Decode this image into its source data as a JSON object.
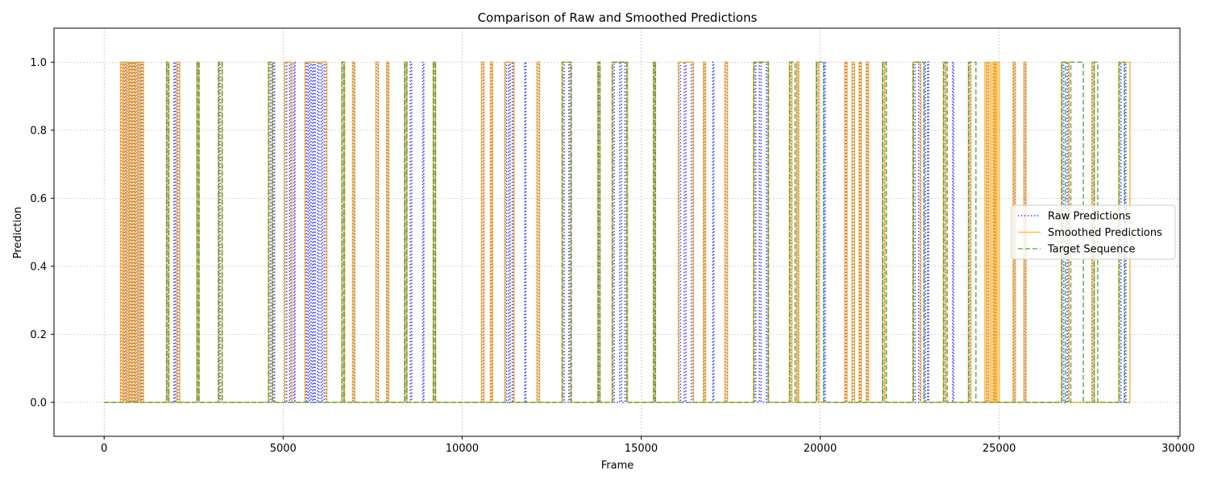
{
  "chart_data": {
    "type": "line",
    "title": "Comparison of Raw and Smoothed Predictions",
    "xlabel": "Frame",
    "ylabel": "Prediction",
    "xlim": [
      -1400,
      30050
    ],
    "ylim": [
      -0.1,
      1.1
    ],
    "xticks": [
      0,
      5000,
      10000,
      15000,
      20000,
      25000,
      30000
    ],
    "xtick_labels": [
      "0",
      "5000",
      "10000",
      "15000",
      "20000",
      "25000",
      "30000"
    ],
    "yticks": [
      0.0,
      0.2,
      0.4,
      0.6,
      0.8,
      1.0
    ],
    "ytick_labels": [
      "0.0",
      "0.2",
      "0.4",
      "0.6",
      "0.8",
      "1.0"
    ],
    "grid": true,
    "legend_position": "center-right",
    "x_end": 28650,
    "series": [
      {
        "name": "Raw Predictions",
        "color": "#0000ff",
        "style": "dotted",
        "on_intervals": [
          [
            470,
            520
          ],
          [
            560,
            600
          ],
          [
            640,
            680
          ],
          [
            720,
            760
          ],
          [
            800,
            840
          ],
          [
            880,
            920
          ],
          [
            960,
            1000
          ],
          [
            1040,
            1080
          ],
          [
            1750,
            1800
          ],
          [
            1950,
            1990
          ],
          [
            2050,
            2100
          ],
          [
            2600,
            2640
          ],
          [
            3200,
            3240
          ],
          [
            4600,
            4650
          ],
          [
            4720,
            4760
          ],
          [
            5050,
            5100
          ],
          [
            5180,
            5220
          ],
          [
            5300,
            5330
          ],
          [
            5620,
            5660
          ],
          [
            5700,
            5740
          ],
          [
            5780,
            5820
          ],
          [
            5860,
            5900
          ],
          [
            5960,
            6000
          ],
          [
            6060,
            6100
          ],
          [
            6150,
            6200
          ],
          [
            6650,
            6700
          ],
          [
            6950,
            6990
          ],
          [
            7600,
            7650
          ],
          [
            7900,
            7940
          ],
          [
            8400,
            8450
          ],
          [
            8550,
            8590
          ],
          [
            8900,
            8930
          ],
          [
            9200,
            9250
          ],
          [
            10550,
            10600
          ],
          [
            10800,
            10840
          ],
          [
            11200,
            11240
          ],
          [
            11300,
            11340
          ],
          [
            11400,
            11440
          ],
          [
            11750,
            11780
          ],
          [
            12100,
            12150
          ],
          [
            12800,
            12850
          ],
          [
            12980,
            13020
          ],
          [
            13800,
            13840
          ],
          [
            14200,
            14250
          ],
          [
            14400,
            14450
          ],
          [
            14550,
            14600
          ],
          [
            15350,
            15390
          ],
          [
            16050,
            16100
          ],
          [
            16200,
            16250
          ],
          [
            16400,
            16450
          ],
          [
            16750,
            16790
          ],
          [
            17000,
            17030
          ],
          [
            17350,
            17400
          ],
          [
            18150,
            18200
          ],
          [
            18300,
            18350
          ],
          [
            18500,
            18550
          ],
          [
            19150,
            19200
          ],
          [
            19350,
            19390
          ],
          [
            19900,
            19950
          ],
          [
            20100,
            20140
          ],
          [
            20700,
            20740
          ],
          [
            20900,
            20950
          ],
          [
            21100,
            21140
          ],
          [
            21300,
            21340
          ],
          [
            21750,
            21800
          ],
          [
            22600,
            22650
          ],
          [
            22750,
            22800
          ],
          [
            22900,
            22940
          ],
          [
            23000,
            23030
          ],
          [
            23450,
            23500
          ],
          [
            23700,
            23730
          ],
          [
            24150,
            24200
          ],
          [
            24650,
            24700
          ],
          [
            24850,
            24900
          ],
          [
            25400,
            25440
          ],
          [
            25700,
            25740
          ],
          [
            26750,
            26800
          ],
          [
            26900,
            26940
          ],
          [
            27600,
            27650
          ],
          [
            28350,
            28400
          ],
          [
            28500,
            28540
          ]
        ]
      },
      {
        "name": "Smoothed Predictions",
        "color": "#ffa500",
        "style": "solid",
        "on_intervals": [
          [
            460,
            520
          ],
          [
            550,
            610
          ],
          [
            630,
            690
          ],
          [
            710,
            770
          ],
          [
            790,
            850
          ],
          [
            870,
            930
          ],
          [
            950,
            1010
          ],
          [
            1030,
            1100
          ],
          [
            1740,
            1810
          ],
          [
            2030,
            2110
          ],
          [
            2590,
            2650
          ],
          [
            3190,
            3290
          ],
          [
            4590,
            4700
          ],
          [
            5040,
            5250
          ],
          [
            5610,
            6220
          ],
          [
            6640,
            6720
          ],
          [
            6940,
            7000
          ],
          [
            7590,
            7660
          ],
          [
            7890,
            7950
          ],
          [
            8390,
            8460
          ],
          [
            9190,
            9260
          ],
          [
            10540,
            10610
          ],
          [
            10790,
            10850
          ],
          [
            11190,
            11450
          ],
          [
            12090,
            12160
          ],
          [
            12790,
            13040
          ],
          [
            13790,
            13850
          ],
          [
            14190,
            14620
          ],
          [
            15340,
            15400
          ],
          [
            16040,
            16460
          ],
          [
            16740,
            16800
          ],
          [
            17340,
            17410
          ],
          [
            18140,
            18560
          ],
          [
            19140,
            19210
          ],
          [
            19340,
            19400
          ],
          [
            19890,
            19960
          ],
          [
            20690,
            20750
          ],
          [
            20890,
            20960
          ],
          [
            21090,
            21150
          ],
          [
            21290,
            21350
          ],
          [
            21740,
            21810
          ],
          [
            22590,
            22810
          ],
          [
            23440,
            23510
          ],
          [
            24140,
            24210
          ],
          [
            24600,
            24650
          ],
          [
            24700,
            24750
          ],
          [
            24800,
            24850
          ],
          [
            24870,
            24910
          ],
          [
            24950,
            25000
          ],
          [
            25390,
            25450
          ],
          [
            25690,
            25750
          ],
          [
            26740,
            26950
          ],
          [
            27590,
            27660
          ],
          [
            28340,
            28650
          ]
        ]
      },
      {
        "name": "Target Sequence",
        "color": "#2ca02c",
        "style": "dashed",
        "on_intervals": [
          [
            1750,
            1800
          ],
          [
            2600,
            2650
          ],
          [
            3200,
            3300
          ],
          [
            4600,
            4700
          ],
          [
            6650,
            6700
          ],
          [
            8400,
            8450
          ],
          [
            9200,
            9250
          ],
          [
            12800,
            13050
          ],
          [
            13800,
            13850
          ],
          [
            14200,
            14600
          ],
          [
            15350,
            15400
          ],
          [
            18150,
            18550
          ],
          [
            19150,
            19300
          ],
          [
            19900,
            20100
          ],
          [
            21750,
            21850
          ],
          [
            22600,
            22900
          ],
          [
            23450,
            23550
          ],
          [
            24150,
            24350
          ],
          [
            26750,
            26850
          ],
          [
            27000,
            27350
          ],
          [
            27650,
            27750
          ],
          [
            28350,
            28500
          ]
        ]
      }
    ]
  }
}
